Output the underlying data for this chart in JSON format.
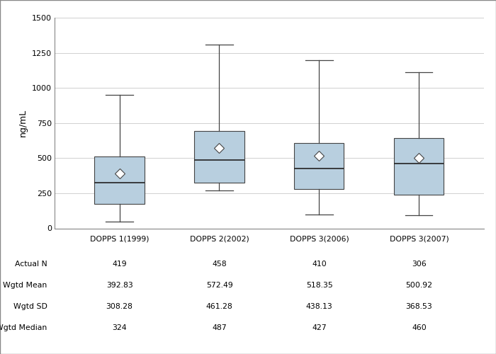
{
  "categories": [
    "DOPPS 1(1999)",
    "DOPPS 2(2002)",
    "DOPPS 3(2006)",
    "DOPPS 3(2007)"
  ],
  "boxes": [
    {
      "whisker_low": 50,
      "q1": 175,
      "median": 324,
      "q3": 510,
      "whisker_high": 950,
      "mean": 392.83
    },
    {
      "whisker_low": 270,
      "q1": 325,
      "median": 487,
      "q3": 695,
      "whisker_high": 1310,
      "mean": 572.49
    },
    {
      "whisker_low": 100,
      "q1": 280,
      "median": 427,
      "q3": 610,
      "whisker_high": 1200,
      "mean": 518.35
    },
    {
      "whisker_low": 95,
      "q1": 240,
      "median": 460,
      "q3": 645,
      "whisker_high": 1110,
      "mean": 500.92
    }
  ],
  "table_rows": [
    {
      "label": "Actual N",
      "values": [
        "419",
        "458",
        "410",
        "306"
      ]
    },
    {
      "label": "Wgtd Mean",
      "values": [
        "392.83",
        "572.49",
        "518.35",
        "500.92"
      ]
    },
    {
      "label": "Wgtd SD",
      "values": [
        "308.28",
        "461.28",
        "438.13",
        "368.53"
      ]
    },
    {
      "label": "Wgtd Median",
      "values": [
        "324",
        "487",
        "427",
        "460"
      ]
    }
  ],
  "ylabel": "ng/mL",
  "ylim": [
    0,
    1500
  ],
  "yticks": [
    0,
    250,
    500,
    750,
    1000,
    1250,
    1500
  ],
  "box_color": "#b8cfdf",
  "box_edge_color": "#444444",
  "whisker_color": "#444444",
  "median_color": "#222222",
  "mean_marker_color": "#ffffff",
  "mean_marker_edge_color": "#444444",
  "box_width": 0.5,
  "background_color": "#ffffff",
  "grid_color": "#d0d0d0",
  "fig_width": 7.0,
  "fig_height": 5.0
}
